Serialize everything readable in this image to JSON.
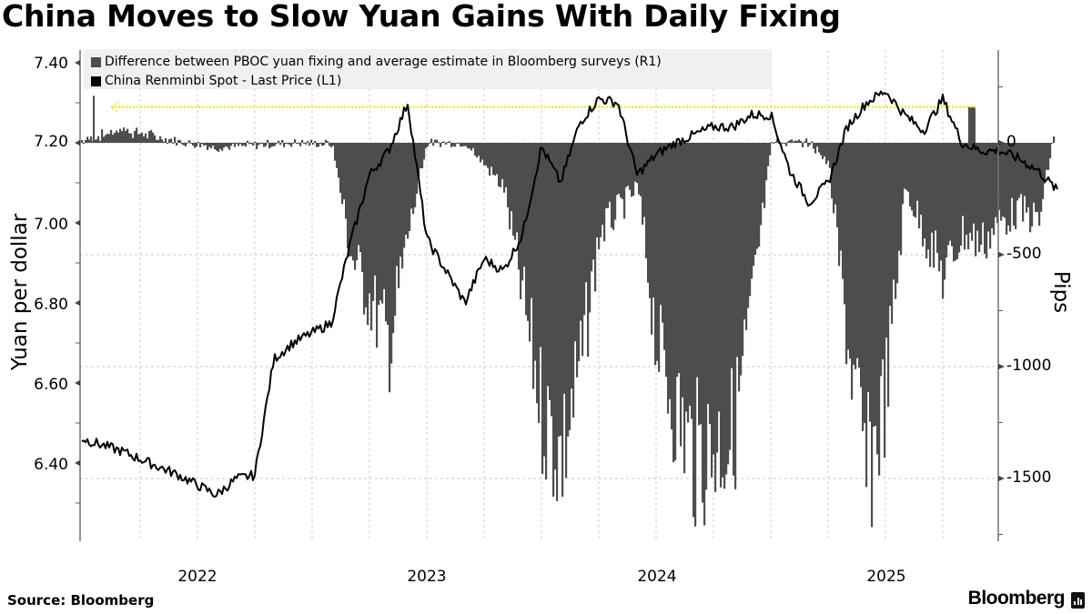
{
  "title": "China Moves to Slow Yuan Gains With Daily Fixing",
  "source": "Source: Bloomberg",
  "brand": "Bloomberg",
  "colors": {
    "bars": "#4d4d4d",
    "line": "#000000",
    "highlight": "#f5e400",
    "legend_bg": "#f0f0f0",
    "grid": "#bdbdbd"
  },
  "legend": [
    {
      "label": "Difference between PBOC yuan fixing and average estimate in Bloomberg surveys (R1)",
      "color": "#4d4d4d"
    },
    {
      "label": "China Renminbi Spot - Last Price (L1)",
      "color": "#000000"
    }
  ],
  "axes": {
    "left": {
      "label": "Yuan per dollar",
      "ticks": [
        "7.40",
        "7.20",
        "7.00",
        "6.80",
        "6.60",
        "6.40"
      ]
    },
    "right": {
      "label": "Pips",
      "ticks": [
        "0",
        "-500",
        "-1000",
        "-1500"
      ]
    },
    "x": {
      "ticks": [
        "2022",
        "2023",
        "2024",
        "2025"
      ]
    }
  },
  "chart_data": {
    "type": "bar+line",
    "title": "China Moves to Slow Yuan Gains With Daily Fixing",
    "xlabel": "",
    "ylabel_left": "Yuan per dollar",
    "ylabel_right": "Pips",
    "ylim_left": [
      6.24,
      7.46
    ],
    "ylim_right": [
      -1780,
      250
    ],
    "x_ticks": [
      "2022",
      "2023",
      "2024",
      "2025"
    ],
    "grid": true,
    "legend_position": "top-left",
    "series": [
      {
        "name": "China Renminbi Spot - Last Price (L1)",
        "axis": "left",
        "type": "line",
        "x": [
          "2021-07",
          "2021-09",
          "2021-12",
          "2022-02",
          "2022-03",
          "2022-04",
          "2022-05",
          "2022-06",
          "2022-08",
          "2022-09",
          "2022-10",
          "2022-11",
          "2022-12",
          "2023-01",
          "2023-02",
          "2023-03",
          "2023-04",
          "2023-05",
          "2023-06",
          "2023-07",
          "2023-08",
          "2023-09",
          "2023-10",
          "2023-11",
          "2023-12",
          "2024-01",
          "2024-02",
          "2024-03",
          "2024-04",
          "2024-05",
          "2024-06",
          "2024-07",
          "2024-08",
          "2024-09",
          "2024-10",
          "2024-11",
          "2024-12",
          "2025-01",
          "2025-02",
          "2025-03",
          "2025-04",
          "2025-05",
          "2025-06",
          "2025-07",
          "2025-08",
          "2025-09",
          "2025-10"
        ],
        "values": [
          6.46,
          6.43,
          6.37,
          6.32,
          6.36,
          6.37,
          6.66,
          6.7,
          6.75,
          6.95,
          7.12,
          7.18,
          7.3,
          6.96,
          6.88,
          6.8,
          6.91,
          6.88,
          6.97,
          7.19,
          7.1,
          7.25,
          7.31,
          7.3,
          7.12,
          7.17,
          7.2,
          7.22,
          7.24,
          7.24,
          7.27,
          7.27,
          7.13,
          7.05,
          7.1,
          7.24,
          7.3,
          7.33,
          7.27,
          7.23,
          7.31,
          7.2,
          7.18,
          7.18,
          7.16,
          7.13,
          7.08
        ]
      },
      {
        "name": "Difference between PBOC yuan fixing and average estimate in Bloomberg surveys (R1)",
        "axis": "right",
        "type": "bar",
        "x": [
          "2021-07",
          "2021-09",
          "2021-12",
          "2022-02",
          "2022-04",
          "2022-06",
          "2022-08",
          "2022-09",
          "2022-10",
          "2022-11",
          "2022-12",
          "2023-01",
          "2023-03",
          "2023-05",
          "2023-06",
          "2023-07",
          "2023-08",
          "2023-09",
          "2023-10",
          "2023-11",
          "2023-12",
          "2024-01",
          "2024-02",
          "2024-03",
          "2024-04",
          "2024-05",
          "2024-06",
          "2024-07",
          "2024-08",
          "2024-09",
          "2024-10",
          "2024-11",
          "2024-12",
          "2025-01",
          "2025-02",
          "2025-03",
          "2025-04",
          "2025-05",
          "2025-06",
          "2025-07",
          "2025-08",
          "2025-09",
          "2025-10"
        ],
        "values": [
          10,
          60,
          5,
          -20,
          -10,
          0,
          -5,
          -500,
          -700,
          -900,
          -400,
          0,
          0,
          -200,
          -700,
          -1200,
          -1400,
          -1000,
          -400,
          -300,
          -200,
          -900,
          -1200,
          -1400,
          -1350,
          -1300,
          -700,
          0,
          0,
          0,
          -100,
          -900,
          -1500,
          -1100,
          -200,
          -400,
          -600,
          -400,
          -450,
          -350,
          -300,
          -350,
          160
        ]
      }
    ],
    "annotations": [
      {
        "type": "dotted-line",
        "color": "#f5e400",
        "value_right": 160,
        "from": "2021-08",
        "to": "2025-10"
      }
    ]
  }
}
